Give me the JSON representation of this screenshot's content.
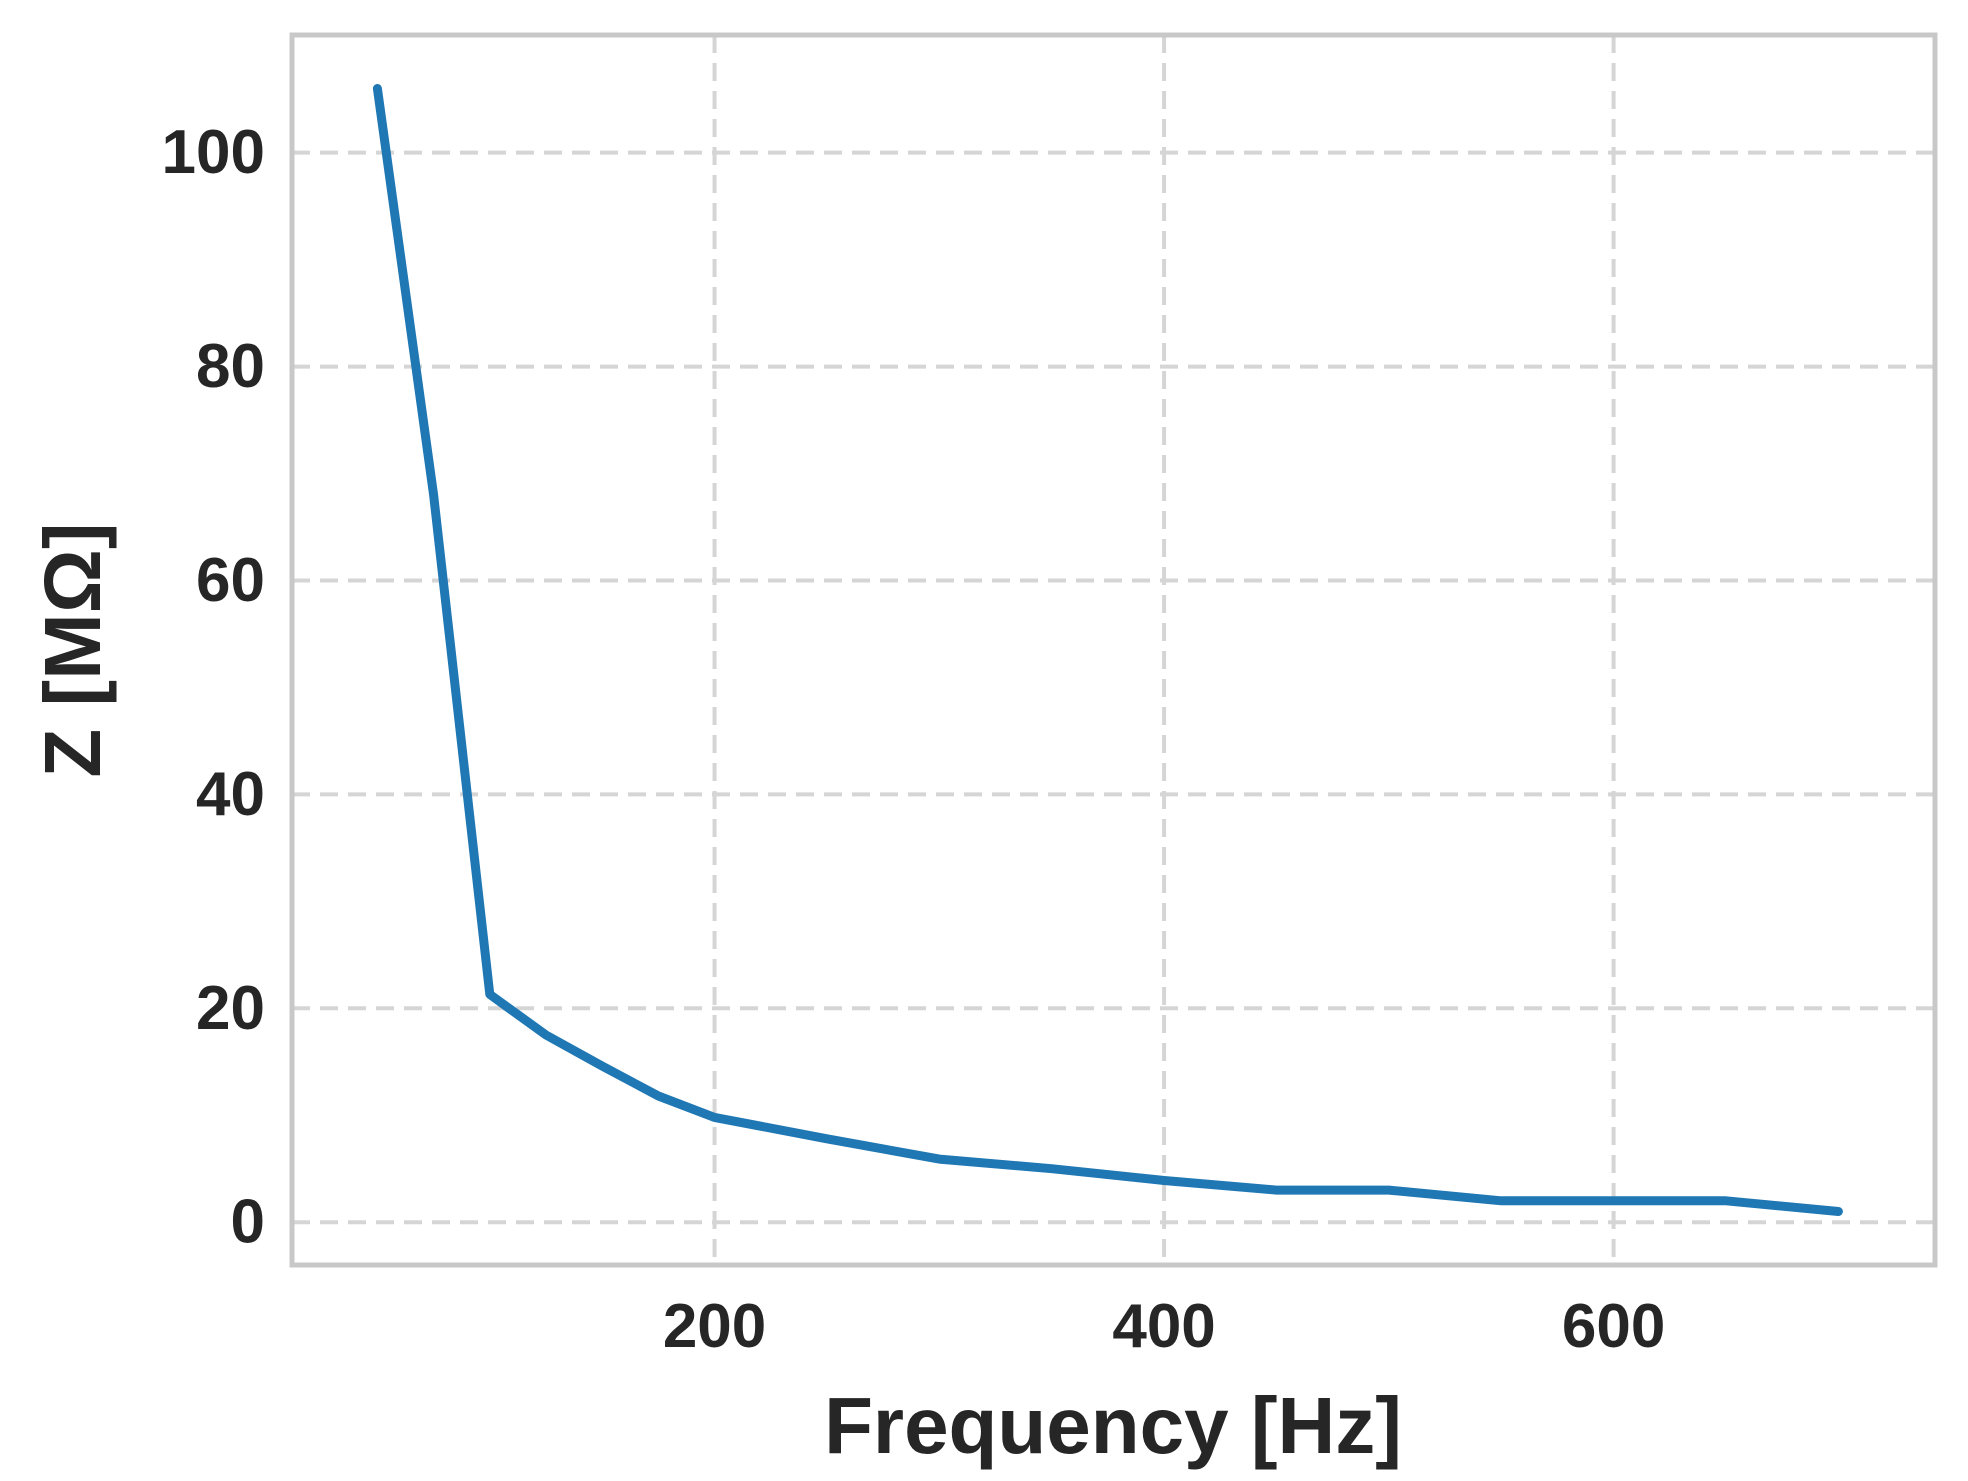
{
  "chart_data": {
    "type": "line",
    "title": "",
    "xlabel": "Frequency [Hz]",
    "ylabel": "Z [MΩ]",
    "xlim": [
      12,
      743
    ],
    "ylim": [
      -4,
      111
    ],
    "xticks": [
      200,
      400,
      600
    ],
    "yticks": [
      0,
      20,
      40,
      60,
      80,
      100
    ],
    "x_tick_labels": [
      "200",
      "400",
      "600"
    ],
    "y_tick_labels": [
      "0",
      "20",
      "40",
      "60",
      "80",
      "100"
    ],
    "grid": true,
    "legend": "none",
    "series": [
      {
        "color": "#1f77b4",
        "x": [
          50,
          75,
          100,
          125,
          150,
          175,
          200,
          250,
          300,
          350,
          400,
          450,
          500,
          550,
          600,
          650,
          700
        ],
        "y": [
          106,
          68,
          21.3,
          17.5,
          14.6,
          11.8,
          9.8,
          7.8,
          5.9,
          5.0,
          3.9,
          3.0,
          3.0,
          2.0,
          2.0,
          2.0,
          1.0
        ]
      }
    ]
  }
}
